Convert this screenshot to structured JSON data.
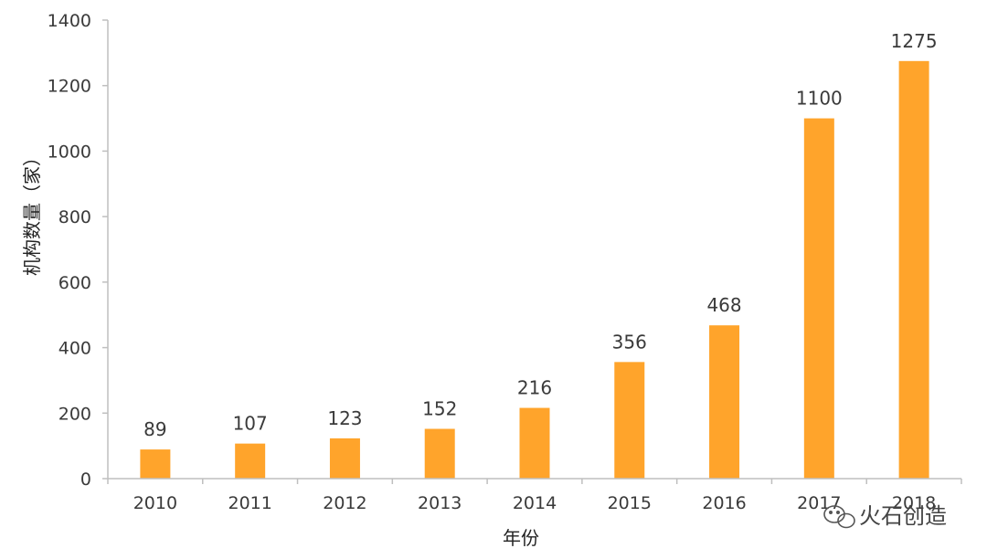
{
  "chart_data": {
    "type": "bar",
    "categories": [
      "2010",
      "2011",
      "2012",
      "2013",
      "2014",
      "2015",
      "2016",
      "2017",
      "2018"
    ],
    "values": [
      89,
      107,
      123,
      152,
      216,
      356,
      468,
      1100,
      1275
    ],
    "data_labels": [
      "89",
      "107",
      "123",
      "152",
      "216",
      "356",
      "468",
      "1100",
      "1275"
    ],
    "title": "",
    "xlabel": "年份",
    "ylabel": "机构数量（家）",
    "ylim": [
      0,
      1400
    ],
    "yticks": [
      0,
      200,
      400,
      600,
      800,
      1000,
      1200,
      1400
    ],
    "grid": false,
    "bar_color": "#FFA42B",
    "axis_color": "#bfbfbf"
  },
  "watermark": {
    "text": "火石创造",
    "icon": "wechat-icon"
  }
}
